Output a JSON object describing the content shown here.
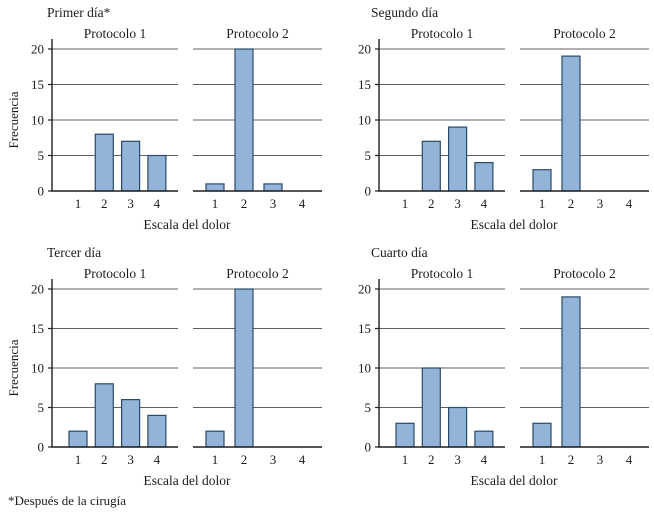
{
  "page": {
    "footnote": "*Después de la cirugía"
  },
  "colors": {
    "bar_fill": "#92b4d8",
    "bar_stroke": "#2b4a68",
    "gridline": "#606060",
    "axis": "#1f1f1f",
    "text": "#1c1c1c"
  },
  "chart_data": [
    {
      "type": "bar",
      "title": "Primer día*",
      "xlabel": "Escala del dolor",
      "ylabel": "Frecuencia",
      "categories": [
        "1",
        "2",
        "3",
        "4"
      ],
      "ylim": [
        0,
        20
      ],
      "yticks": [
        0,
        5,
        10,
        15,
        20
      ],
      "grid": "horizontal",
      "series": [
        {
          "name": "Protocolo 1",
          "values": [
            0,
            8,
            7,
            5
          ]
        },
        {
          "name": "Protocolo 2",
          "values": [
            1,
            20,
            1,
            0
          ]
        }
      ]
    },
    {
      "type": "bar",
      "title": "Segundo día",
      "xlabel": "Escala del dolor",
      "ylabel": "Frecuencia",
      "categories": [
        "1",
        "2",
        "3",
        "4"
      ],
      "ylim": [
        0,
        20
      ],
      "yticks": [
        0,
        5,
        10,
        15,
        20
      ],
      "grid": "horizontal",
      "series": [
        {
          "name": "Protocolo 1",
          "values": [
            0,
            7,
            9,
            4
          ]
        },
        {
          "name": "Protocolo 2",
          "values": [
            3,
            19,
            0,
            0
          ]
        }
      ]
    },
    {
      "type": "bar",
      "title": "Tercer día",
      "xlabel": "Escala del dolor",
      "ylabel": "Frecuencia",
      "categories": [
        "1",
        "2",
        "3",
        "4"
      ],
      "ylim": [
        0,
        20
      ],
      "yticks": [
        0,
        5,
        10,
        15,
        20
      ],
      "grid": "horizontal",
      "series": [
        {
          "name": "Protocolo 1",
          "values": [
            2,
            8,
            6,
            4
          ]
        },
        {
          "name": "Protocolo 2",
          "values": [
            2,
            20,
            0,
            0
          ]
        }
      ]
    },
    {
      "type": "bar",
      "title": "Cuarto día",
      "xlabel": "Escala del dolor",
      "ylabel": "Frecuencia",
      "categories": [
        "1",
        "2",
        "3",
        "4"
      ],
      "ylim": [
        0,
        20
      ],
      "yticks": [
        0,
        5,
        10,
        15,
        20
      ],
      "grid": "horizontal",
      "series": [
        {
          "name": "Protocolo 1",
          "values": [
            3,
            10,
            5,
            2
          ]
        },
        {
          "name": "Protocolo 2",
          "values": [
            3,
            19,
            0,
            0
          ]
        }
      ]
    }
  ]
}
